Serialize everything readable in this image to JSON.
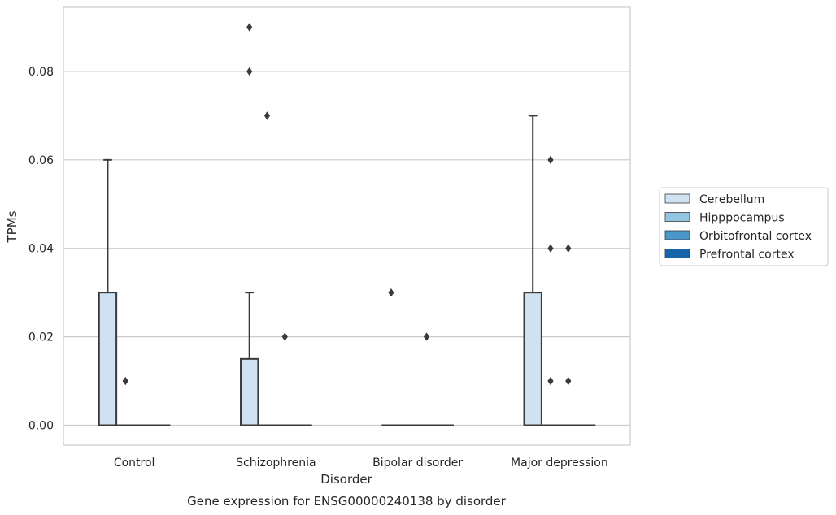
{
  "chart_data": {
    "type": "box",
    "title": "",
    "caption": "Gene expression for ENSG00000240138 by disorder",
    "xlabel": "Disorder",
    "ylabel": "TPMs",
    "ylim": [
      -0.0045,
      0.0945
    ],
    "yticks": [
      0.0,
      0.02,
      0.04,
      0.06,
      0.08
    ],
    "ytick_labels": [
      "0.00",
      "0.02",
      "0.04",
      "0.06",
      "0.08"
    ],
    "grid": "horizontal",
    "legend_position": "center-right outside",
    "categories": [
      "Control",
      "Schizophrenia",
      "Bipolar disorder",
      "Major depression"
    ],
    "series": [
      {
        "name": "Cerebellum",
        "color": "#d0e1f2",
        "boxes": [
          {
            "category": "Control",
            "q1": 0.0,
            "median": 0.0,
            "q3": 0.03,
            "whisker_low": 0.0,
            "whisker_high": 0.06,
            "outliers": []
          },
          {
            "category": "Schizophrenia",
            "q1": 0.0,
            "median": 0.0,
            "q3": 0.015,
            "whisker_low": 0.0,
            "whisker_high": 0.03,
            "outliers": [
              0.09,
              0.08
            ]
          },
          {
            "category": "Bipolar disorder",
            "q1": 0.0,
            "median": 0.0,
            "q3": 0.0,
            "whisker_low": 0.0,
            "whisker_high": 0.0,
            "outliers": [
              0.03
            ]
          },
          {
            "category": "Major depression",
            "q1": 0.0,
            "median": 0.0,
            "q3": 0.03,
            "whisker_low": 0.0,
            "whisker_high": 0.07,
            "outliers": []
          }
        ]
      },
      {
        "name": "Hipppocampus",
        "color": "#94c4df",
        "boxes": [
          {
            "category": "Control",
            "q1": 0.0,
            "median": 0.0,
            "q3": 0.0,
            "whisker_low": 0.0,
            "whisker_high": 0.0,
            "outliers": [
              0.01
            ]
          },
          {
            "category": "Schizophrenia",
            "q1": 0.0,
            "median": 0.0,
            "q3": 0.0,
            "whisker_low": 0.0,
            "whisker_high": 0.0,
            "outliers": [
              0.07
            ]
          },
          {
            "category": "Bipolar disorder",
            "q1": 0.0,
            "median": 0.0,
            "q3": 0.0,
            "whisker_low": 0.0,
            "whisker_high": 0.0,
            "outliers": []
          },
          {
            "category": "Major depression",
            "q1": 0.0,
            "median": 0.0,
            "q3": 0.0,
            "whisker_low": 0.0,
            "whisker_high": 0.0,
            "outliers": [
              0.06,
              0.04,
              0.01
            ]
          }
        ]
      },
      {
        "name": "Orbitofrontal cortex",
        "color": "#4a98c9",
        "boxes": [
          {
            "category": "Control",
            "q1": 0.0,
            "median": 0.0,
            "q3": 0.0,
            "whisker_low": 0.0,
            "whisker_high": 0.0,
            "outliers": []
          },
          {
            "category": "Schizophrenia",
            "q1": 0.0,
            "median": 0.0,
            "q3": 0.0,
            "whisker_low": 0.0,
            "whisker_high": 0.0,
            "outliers": [
              0.02
            ]
          },
          {
            "category": "Bipolar disorder",
            "q1": 0.0,
            "median": 0.0,
            "q3": 0.0,
            "whisker_low": 0.0,
            "whisker_high": 0.0,
            "outliers": [
              0.02
            ]
          },
          {
            "category": "Major depression",
            "q1": 0.0,
            "median": 0.0,
            "q3": 0.0,
            "whisker_low": 0.0,
            "whisker_high": 0.0,
            "outliers": [
              0.04,
              0.01
            ]
          }
        ]
      },
      {
        "name": "Prefrontal cortex",
        "color": "#1764ab",
        "boxes": [
          {
            "category": "Control",
            "q1": 0.0,
            "median": 0.0,
            "q3": 0.0,
            "whisker_low": 0.0,
            "whisker_high": 0.0,
            "outliers": []
          },
          {
            "category": "Schizophrenia",
            "q1": 0.0,
            "median": 0.0,
            "q3": 0.0,
            "whisker_low": 0.0,
            "whisker_high": 0.0,
            "outliers": []
          },
          {
            "category": "Bipolar disorder",
            "q1": 0.0,
            "median": 0.0,
            "q3": 0.0,
            "whisker_low": 0.0,
            "whisker_high": 0.0,
            "outliers": []
          },
          {
            "category": "Major depression",
            "q1": 0.0,
            "median": 0.0,
            "q3": 0.0,
            "whisker_low": 0.0,
            "whisker_high": 0.0,
            "outliers": []
          }
        ]
      }
    ],
    "box_edge_color": "#3a3a3a",
    "grid_color": "#cccccc",
    "frame_color": "#cccccc"
  }
}
